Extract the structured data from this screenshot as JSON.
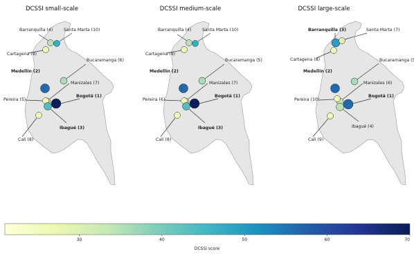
{
  "panels": [
    {
      "title": "DCSSI small-scale",
      "cities": [
        {
          "name": "Barranquilla",
          "label": "Barranquilla (4)",
          "rank": 4,
          "bold": false,
          "color": "#b9e3b6"
        },
        {
          "name": "Santa Marta",
          "label": "Santa Marta (10)",
          "rank": 10,
          "bold": false,
          "color": "#2db3c2"
        },
        {
          "name": "Cartagena",
          "label": "Cartagena (9)",
          "rank": 9,
          "bold": false,
          "color": "#eef8b4"
        },
        {
          "name": "Bucaramanga",
          "label": "Bucaramanga (6)",
          "rank": 6,
          "bold": false,
          "color": "#a9dcb6"
        },
        {
          "name": "Medellín",
          "label": "Medellín (2)",
          "rank": 2,
          "bold": true,
          "color": "#2168ac"
        },
        {
          "name": "Manizales",
          "label": "Manizales (7)",
          "rank": 7,
          "bold": false,
          "color": "#c4e8b4"
        },
        {
          "name": "Pereira",
          "label": "Pereira (5)",
          "rank": 5,
          "bold": false,
          "color": "#f1f9b8"
        },
        {
          "name": "Bogotá",
          "label": "Bogotá (1)",
          "rank": 1,
          "bold": true,
          "color": "#0d1d5e"
        },
        {
          "name": "Ibagué",
          "label": "Ibagué (3)",
          "rank": 3,
          "bold": true,
          "color": "#56bcc2"
        },
        {
          "name": "Cali",
          "label": "Cali (8)",
          "rank": 8,
          "bold": false,
          "color": "#f4fab9"
        }
      ]
    },
    {
      "title": "DCSSI medium-scale",
      "cities": [
        {
          "name": "Barranquilla",
          "label": "Barranquilla (4)",
          "rank": 4,
          "bold": false,
          "color": "#b9e3b6"
        },
        {
          "name": "Santa Marta",
          "label": "Santa Marta (10)",
          "rank": 10,
          "bold": false,
          "color": "#2db3c2"
        },
        {
          "name": "Cartagena",
          "label": "Cartagena (9)",
          "rank": 9,
          "bold": false,
          "color": "#eef8b4"
        },
        {
          "name": "Bucaramanga",
          "label": "Bucaramanga (5)",
          "rank": 5,
          "bold": false,
          "color": "#a9dcb6"
        },
        {
          "name": "Medellín",
          "label": "Medellín (2)",
          "rank": 2,
          "bold": true,
          "color": "#2168ac"
        },
        {
          "name": "Manizales",
          "label": "Manizales (7)",
          "rank": 7,
          "bold": false,
          "color": "#c4e8b4"
        },
        {
          "name": "Pereira",
          "label": "Pereira (6)",
          "rank": 6,
          "bold": false,
          "color": "#f1f9b8"
        },
        {
          "name": "Bogotá",
          "label": "Bogotá (1)",
          "rank": 1,
          "bold": true,
          "color": "#0d1d5e"
        },
        {
          "name": "Ibagué",
          "label": "Ibagué (3)",
          "rank": 3,
          "bold": true,
          "color": "#56bcc2"
        },
        {
          "name": "Cali",
          "label": "Cali (8)",
          "rank": 8,
          "bold": false,
          "color": "#f4fab9"
        }
      ]
    },
    {
      "title": "DCSSI large-scale",
      "cities": [
        {
          "name": "Barranquilla",
          "label": "Barranquilla (3)",
          "rank": 3,
          "bold": true,
          "color": "#2f9bc2"
        },
        {
          "name": "Santa Marta",
          "label": "Santa Marta (7)",
          "rank": 7,
          "bold": false,
          "color": "#dff2b1"
        },
        {
          "name": "Cartagena",
          "label": "Cartagena (8)",
          "rank": 8,
          "bold": false,
          "color": "#f1f9b8"
        },
        {
          "name": "Bucaramanga",
          "label": "Bucaramanga (5)",
          "rank": 5,
          "bold": false,
          "color": "#a9dcb6"
        },
        {
          "name": "Medellín",
          "label": "Medellín (2)",
          "rank": 2,
          "bold": true,
          "color": "#2168ac"
        },
        {
          "name": "Manizales",
          "label": "Manizales (6)",
          "rank": 6,
          "bold": false,
          "color": "#c4e8b4"
        },
        {
          "name": "Pereira",
          "label": "Pereira (10)",
          "rank": 10,
          "bold": false,
          "color": "#f1f9b8"
        },
        {
          "name": "Bogotá",
          "label": "Bogotá (1)",
          "rank": 1,
          "bold": true,
          "color": "#2168ac"
        },
        {
          "name": "Ibagué",
          "label": "Ibagué (4)",
          "rank": 4,
          "bold": false,
          "color": "#b9e3b6"
        },
        {
          "name": "Cali",
          "label": "Cali (9)",
          "rank": 9,
          "bold": false,
          "color": "#f4fab9"
        }
      ]
    }
  ],
  "colorbar": {
    "label": "DCSSI score",
    "ticks": [
      30,
      40,
      50,
      60,
      70
    ],
    "min": 21,
    "max": 70,
    "stops": [
      "#ffffd9",
      "#edf8b1",
      "#c7e9b4",
      "#7fcdbb",
      "#41b6c4",
      "#1d91c0",
      "#225ea8",
      "#253494",
      "#081d58"
    ]
  },
  "colors": {
    "land": "#e6e6e6",
    "border": "#999999",
    "leader": "#333333"
  }
}
